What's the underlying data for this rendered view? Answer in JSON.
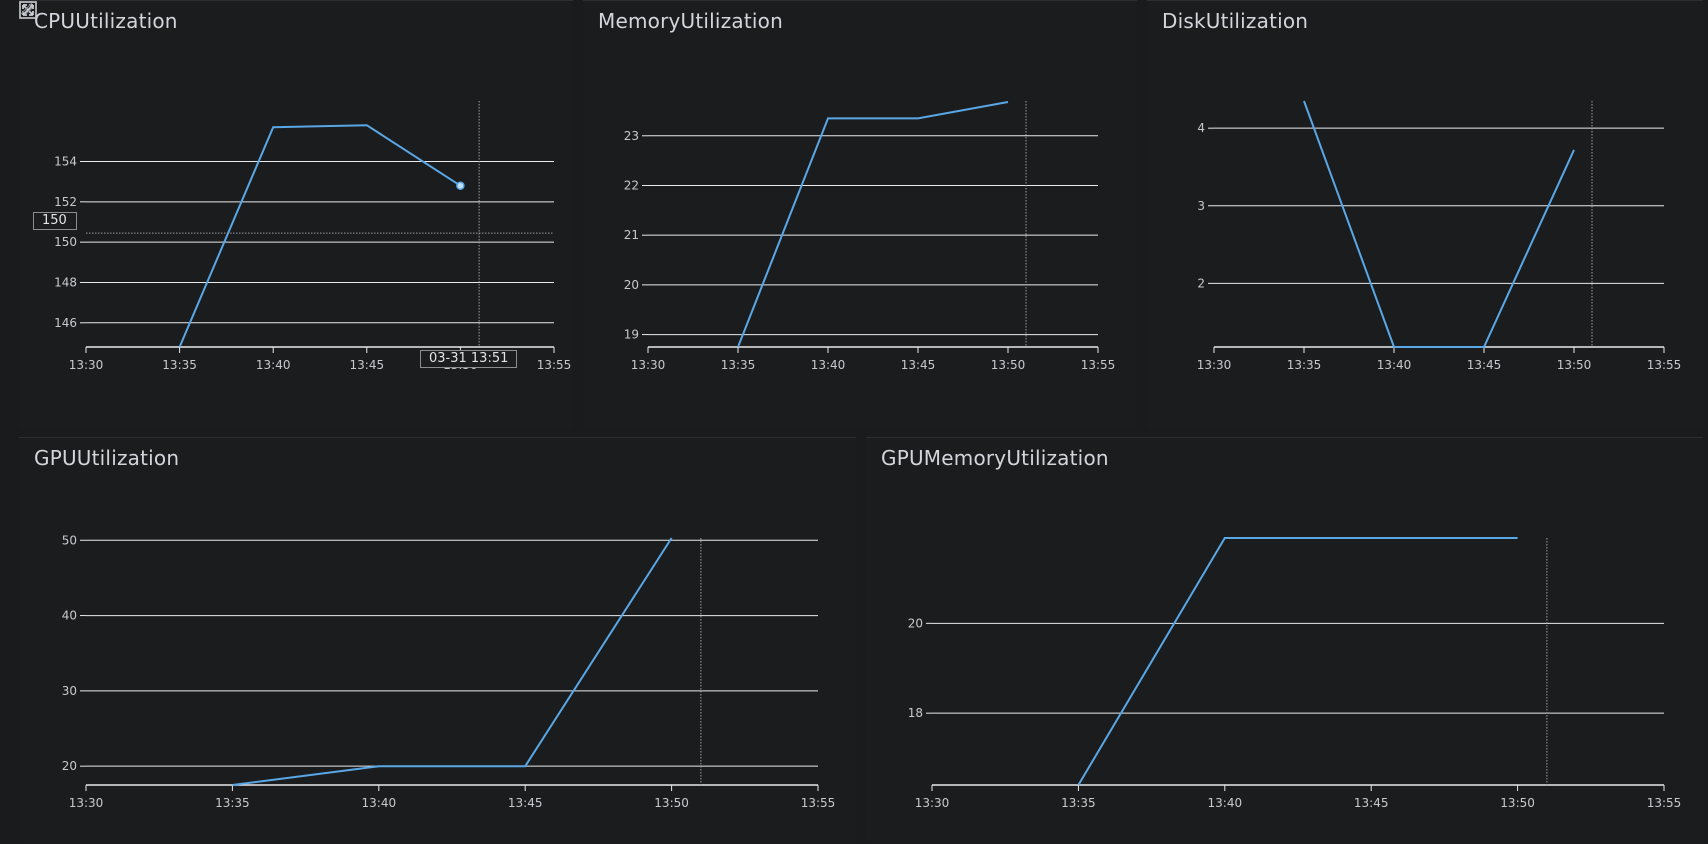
{
  "tooltip": {
    "y_value": "150",
    "x_value": "03-31 13:51"
  },
  "icons": {
    "expand": "expand-icon",
    "resize": "resize-handle-icon"
  },
  "colors": {
    "series": "#5aa7e6",
    "grid": "#e9eaec",
    "axis": "#e9eaec",
    "cursor": "#9aa0a6"
  },
  "chart_data": [
    {
      "type": "line",
      "title": "CPUUtilization",
      "x": [
        "13:35",
        "13:40",
        "13:45",
        "13:50"
      ],
      "series": [
        {
          "values": [
            144.8,
            155.7,
            155.8,
            152.8
          ]
        }
      ],
      "x_ticks": [
        "13:30",
        "13:35",
        "13:40",
        "13:45",
        "13:50",
        "13:55"
      ],
      "y_ticks": [
        146,
        148,
        150,
        152,
        154
      ],
      "ylim": [
        144.8,
        157
      ],
      "cursor_x": "13:51",
      "grid": true
    },
    {
      "type": "line",
      "title": "MemoryUtilization",
      "x": [
        "13:35",
        "13:40",
        "13:45",
        "13:50"
      ],
      "series": [
        {
          "values": [
            18.75,
            23.35,
            23.35,
            23.68
          ]
        }
      ],
      "x_ticks": [
        "13:30",
        "13:35",
        "13:40",
        "13:45",
        "13:50",
        "13:55"
      ],
      "y_ticks": [
        19,
        20,
        21,
        22,
        23
      ],
      "ylim": [
        18.75,
        23.7
      ],
      "cursor_x": "13:51",
      "grid": true
    },
    {
      "type": "line",
      "title": "DiskUtilization",
      "x": [
        "13:35",
        "13:40",
        "13:45",
        "13:50"
      ],
      "series": [
        {
          "values": [
            4.35,
            1.18,
            1.18,
            3.72
          ]
        }
      ],
      "x_ticks": [
        "13:30",
        "13:35",
        "13:40",
        "13:45",
        "13:50",
        "13:55"
      ],
      "y_ticks": [
        2,
        3,
        4
      ],
      "ylim": [
        1.18,
        4.35
      ],
      "cursor_x": "13:51",
      "grid": true
    },
    {
      "type": "line",
      "title": "GPUUtilization",
      "x": [
        "13:35",
        "13:40",
        "13:45",
        "13:50"
      ],
      "series": [
        {
          "values": [
            17.5,
            20,
            20,
            50.3
          ]
        }
      ],
      "x_ticks": [
        "13:30",
        "13:35",
        "13:40",
        "13:45",
        "13:50",
        "13:55"
      ],
      "y_ticks": [
        20,
        30,
        40,
        50
      ],
      "ylim": [
        17.5,
        50.3
      ],
      "cursor_x": "13:51",
      "grid": true
    },
    {
      "type": "line",
      "title": "GPUMemoryUtilization",
      "x": [
        "13:35",
        "13:40",
        "13:45",
        "13:50"
      ],
      "series": [
        {
          "values": [
            16.4,
            21.9,
            21.9,
            21.9
          ]
        }
      ],
      "x_ticks": [
        "13:30",
        "13:35",
        "13:40",
        "13:45",
        "13:50",
        "13:55"
      ],
      "y_ticks": [
        18,
        20
      ],
      "ylim": [
        16.4,
        21.9
      ],
      "cursor_x": "13:51",
      "grid": true
    }
  ]
}
